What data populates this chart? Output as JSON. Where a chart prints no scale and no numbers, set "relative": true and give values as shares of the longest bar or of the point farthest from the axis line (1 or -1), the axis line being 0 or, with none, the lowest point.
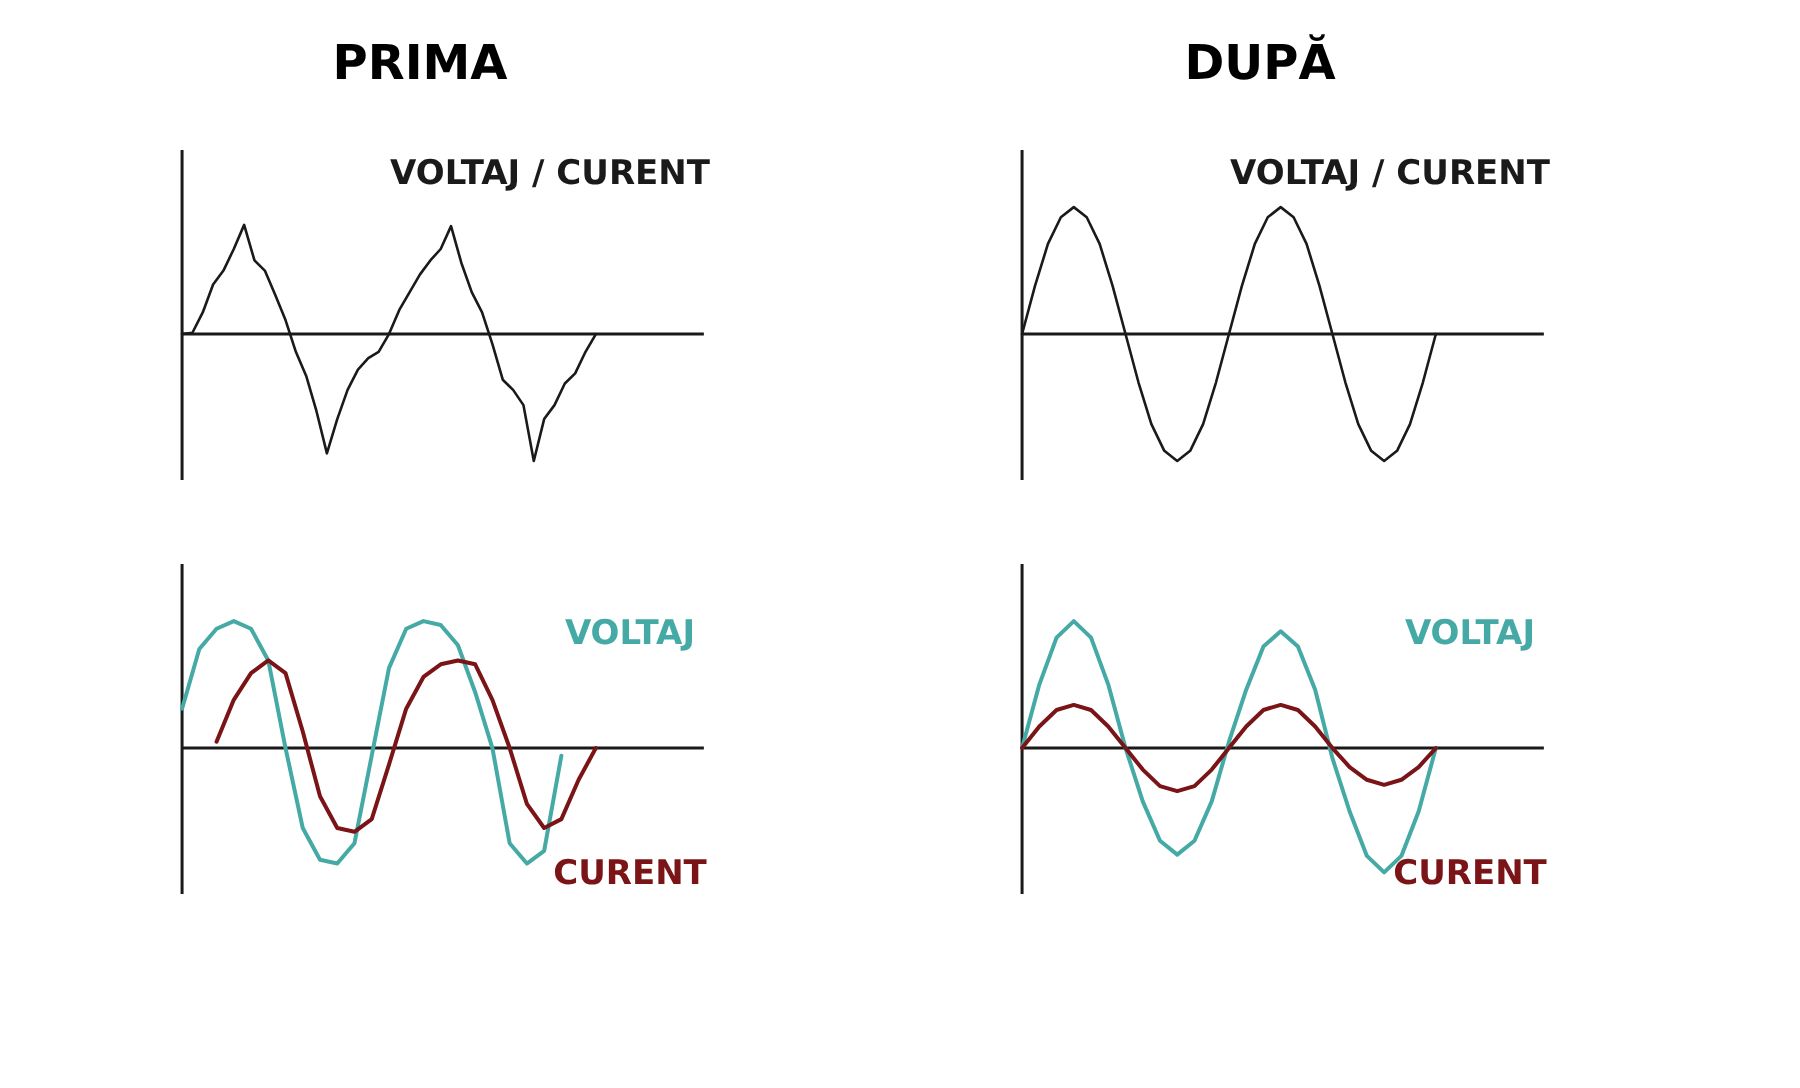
{
  "chart_data": [
    {
      "type": "line",
      "title": "PRIMA",
      "relative": true,
      "categories": [
        null,
        null,
        null,
        null,
        null,
        null,
        null,
        null,
        null,
        null,
        null,
        null,
        null,
        null,
        null,
        null,
        null,
        null,
        null,
        null,
        null,
        null,
        null,
        null,
        null,
        null,
        null,
        null,
        null,
        null,
        null,
        null,
        null,
        null,
        null,
        null,
        null,
        null,
        null,
        null,
        null
      ],
      "series": [
        {
          "name": "VOLTAJ / CURENT",
          "color": "#1a1a1a",
          "values": [
            0,
            0.01,
            0.17,
            0.39,
            0.5,
            0.67,
            0.86,
            0.58,
            0.5,
            0.31,
            0.11,
            -0.14,
            -0.33,
            -0.61,
            -0.94,
            -0.67,
            -0.44,
            -0.28,
            -0.19,
            -0.14,
            0,
            0.19,
            0.33,
            0.47,
            0.58,
            0.67,
            0.85,
            0.56,
            0.33,
            0.17,
            -0.08,
            -0.36,
            -0.44,
            -0.56,
            -1,
            -0.67,
            -0.56,
            -0.39,
            -0.31,
            -0.14,
            0
          ]
        }
      ]
    },
    {
      "type": "line",
      "relative": true,
      "categories": [
        null,
        null,
        null,
        null,
        null,
        null,
        null,
        null,
        null,
        null,
        null,
        null,
        null,
        null,
        null,
        null,
        null,
        null,
        null,
        null,
        null,
        null,
        null,
        null,
        null
      ],
      "series": [
        {
          "name": "VOLTAJ",
          "color": "#45aaa5",
          "values": [
            0.31,
            0.78,
            0.94,
            1.0,
            0.94,
            0.69,
            0,
            -0.63,
            -0.88,
            -0.91,
            -0.75,
            -0.06,
            0.63,
            0.94,
            1.0,
            0.97,
            0.81,
            0.44,
            0,
            -0.75,
            -0.91,
            -0.81,
            -0.06,
            null,
            null
          ]
        },
        {
          "name": "CURENT",
          "color": "#7a1416",
          "values": [
            null,
            null,
            0.05,
            0.38,
            0.59,
            0.69,
            0.59,
            0.13,
            -0.38,
            -0.63,
            -0.66,
            -0.56,
            -0.13,
            0.31,
            0.56,
            0.66,
            0.69,
            0.66,
            0.38,
            0,
            -0.44,
            -0.63,
            -0.56,
            -0.25,
            0
          ]
        }
      ]
    },
    {
      "type": "line",
      "title": "DUPĂ",
      "relative": true,
      "categories": [
        null,
        null,
        null,
        null,
        null,
        null,
        null,
        null,
        null,
        null,
        null,
        null,
        null,
        null,
        null,
        null,
        null,
        null,
        null,
        null,
        null,
        null,
        null,
        null,
        null,
        null,
        null,
        null,
        null,
        null,
        null,
        null,
        null
      ],
      "series": [
        {
          "name": "VOLTAJ / CURENT",
          "color": "#1a1a1a",
          "values": [
            0,
            0.38,
            0.71,
            0.92,
            1,
            0.92,
            0.71,
            0.38,
            0,
            -0.38,
            -0.71,
            -0.92,
            -1,
            -0.92,
            -0.71,
            -0.38,
            0,
            0.38,
            0.71,
            0.92,
            1,
            0.92,
            0.71,
            0.38,
            0,
            -0.38,
            -0.71,
            -0.92,
            -1,
            -0.92,
            -0.71,
            -0.38,
            0
          ]
        }
      ]
    },
    {
      "type": "line",
      "relative": true,
      "categories": [
        null,
        null,
        null,
        null,
        null,
        null,
        null,
        null,
        null,
        null,
        null,
        null,
        null,
        null,
        null,
        null,
        null,
        null,
        null,
        null,
        null,
        null,
        null,
        null,
        null
      ],
      "series": [
        {
          "name": "VOLTAJ",
          "color": "#45aaa5",
          "values": [
            0,
            0.5,
            0.87,
            1.0,
            0.87,
            0.5,
            0,
            -0.42,
            -0.73,
            -0.84,
            -0.73,
            -0.42,
            0.05,
            0.46,
            0.8,
            0.92,
            0.8,
            0.46,
            -0.08,
            -0.5,
            -0.85,
            -0.98,
            -0.85,
            -0.5,
            0
          ]
        },
        {
          "name": "CURENT",
          "color": "#7a1416",
          "values": [
            0,
            0.17,
            0.3,
            0.34,
            0.3,
            0.17,
            0,
            -0.17,
            -0.3,
            -0.34,
            -0.3,
            -0.17,
            0,
            0.17,
            0.3,
            0.34,
            0.3,
            0.17,
            0,
            -0.15,
            -0.25,
            -0.29,
            -0.25,
            -0.15,
            0
          ]
        }
      ]
    }
  ]
}
